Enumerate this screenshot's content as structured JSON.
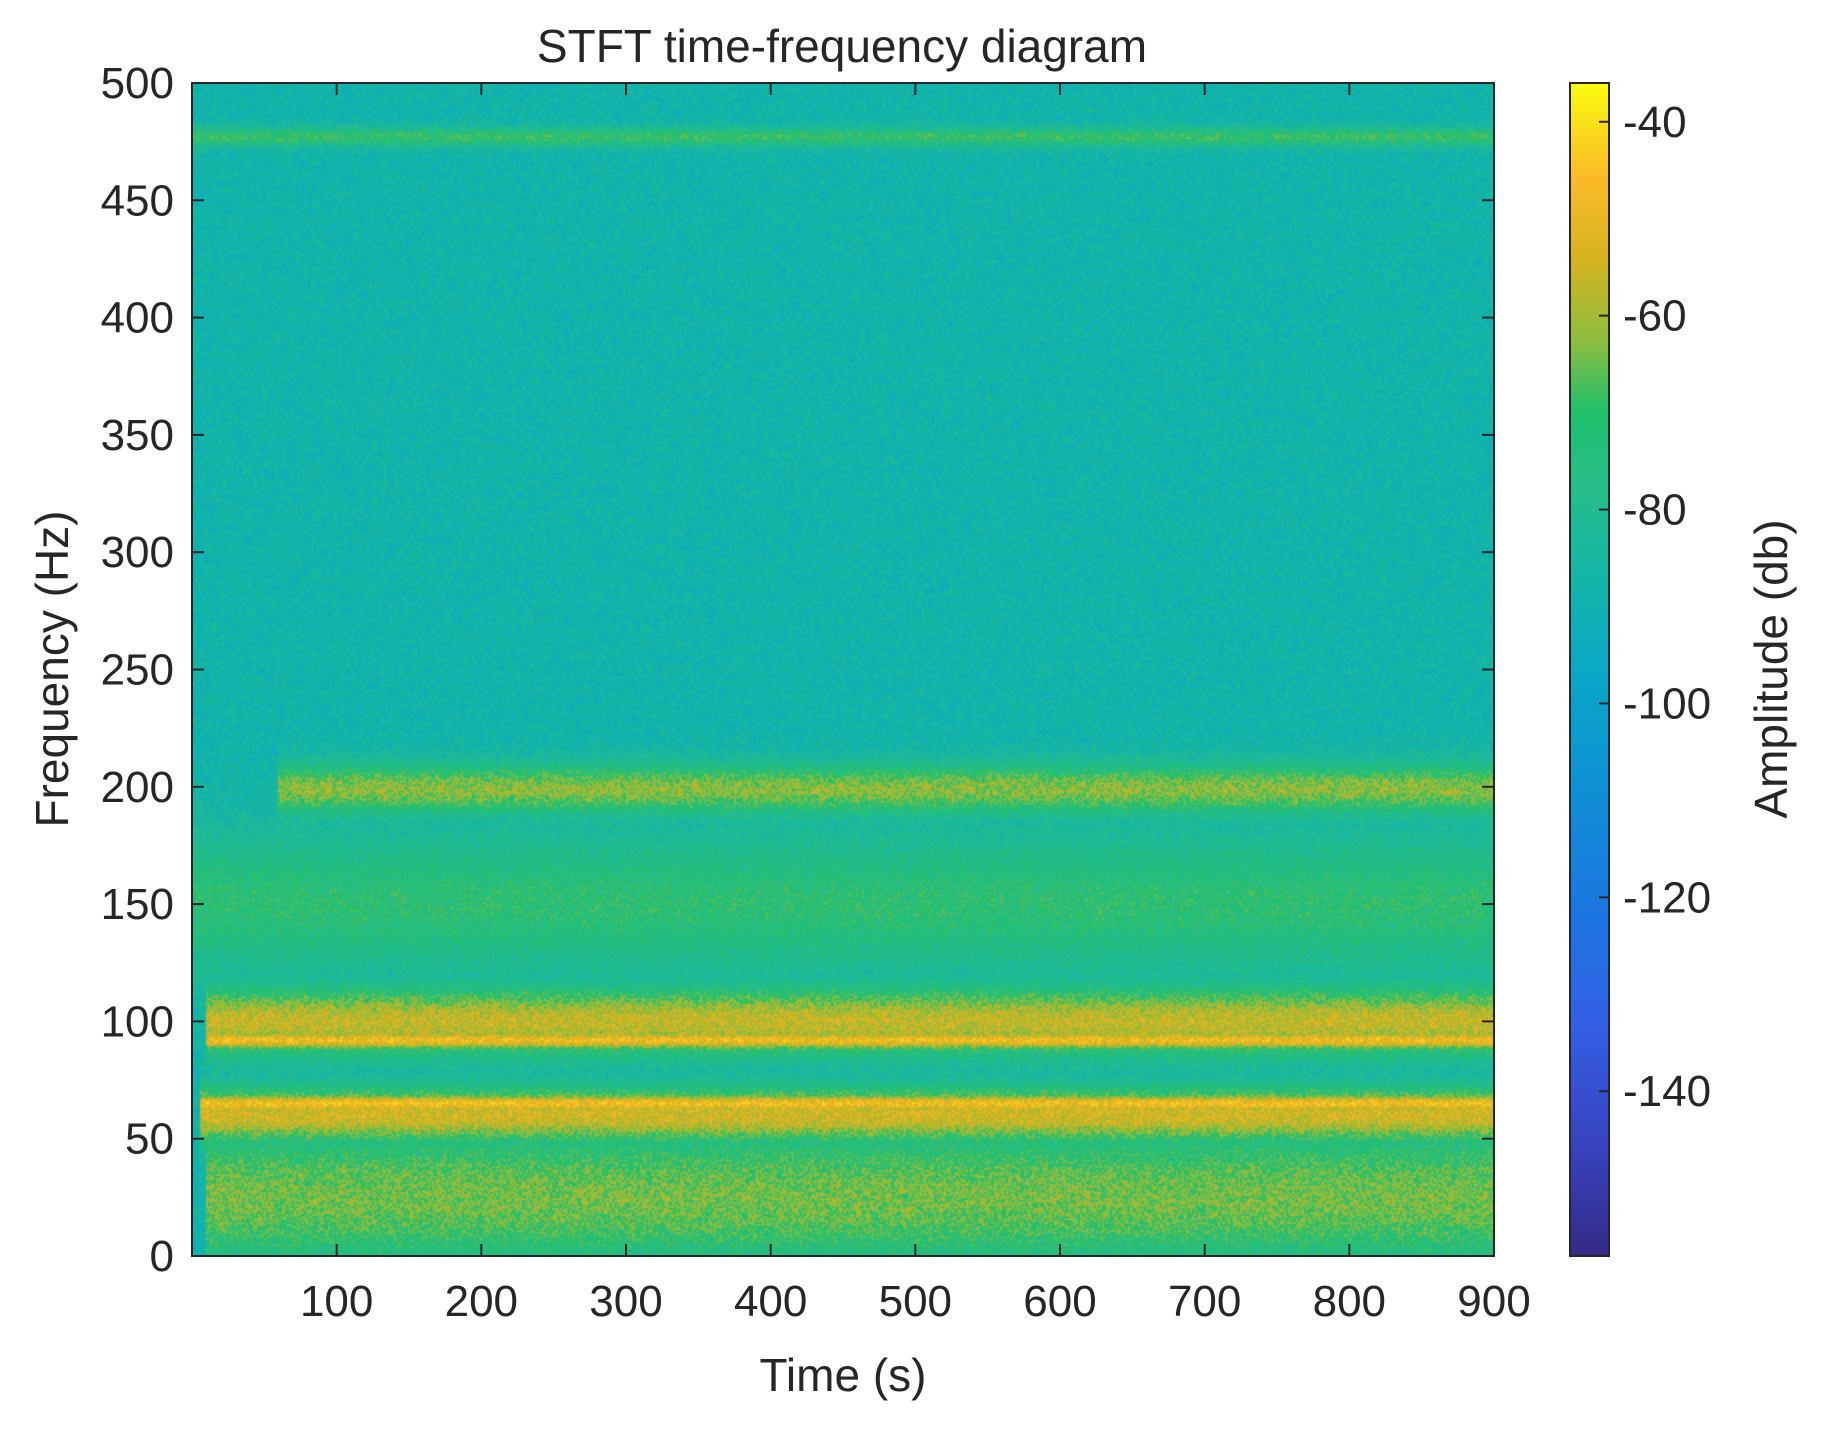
{
  "chart_data": {
    "type": "heatmap",
    "title": "STFT time-frequency diagram",
    "xlabel": "Time (s)",
    "ylabel": "Frequency (Hz)",
    "xlim": [
      0,
      900
    ],
    "ylim": [
      0,
      500
    ],
    "xticks": [
      "100",
      "200",
      "300",
      "400",
      "500",
      "600",
      "700",
      "800",
      "900"
    ],
    "yticks": [
      "0",
      "50",
      "100",
      "150",
      "200",
      "250",
      "300",
      "350",
      "400",
      "450",
      "500"
    ],
    "colorbar": {
      "label": "Amplitude (db)",
      "range": [
        -157,
        -36
      ],
      "ticks": [
        "-40",
        "-60",
        "-80",
        "-100",
        "-120",
        "-140"
      ],
      "colormap": "parula"
    },
    "background_level_db": -88,
    "bands": [
      {
        "freq_center": 477,
        "freq_width": 6,
        "time_start": 0,
        "time_end": 900,
        "level_db": -70
      },
      {
        "freq_center": 199,
        "freq_width": 16,
        "time_start": 60,
        "time_end": 900,
        "level_db": -62
      },
      {
        "freq_center": 150,
        "freq_width": 45,
        "time_start": 0,
        "time_end": 900,
        "level_db": -72
      },
      {
        "freq_center": 100,
        "freq_width": 22,
        "time_start": 10,
        "time_end": 900,
        "level_db": -56
      },
      {
        "freq_center": 92,
        "freq_width": 6,
        "time_start": 10,
        "time_end": 900,
        "level_db": -48
      },
      {
        "freq_center": 60,
        "freq_width": 18,
        "time_start": 5,
        "time_end": 900,
        "level_db": -54
      },
      {
        "freq_center": 65,
        "freq_width": 6,
        "time_start": 5,
        "time_end": 900,
        "level_db": -47
      },
      {
        "freq_center": 25,
        "freq_width": 45,
        "time_start": 10,
        "time_end": 900,
        "level_db": -64
      }
    ],
    "grid": false
  }
}
